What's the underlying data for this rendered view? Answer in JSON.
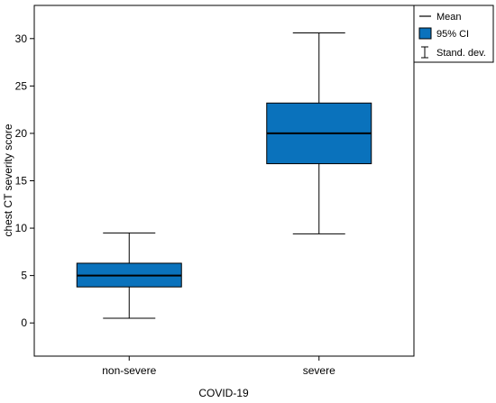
{
  "chart_data": {
    "type": "box",
    "xlabel": "COVID-19",
    "ylabel": "chest CT severity score",
    "ylim": [
      -3.5,
      33.5
    ],
    "yticks": [
      0,
      5,
      10,
      15,
      20,
      25,
      30
    ],
    "categories": [
      "non-severe",
      "severe"
    ],
    "boxes": [
      {
        "category": "non-severe",
        "mean": 5.0,
        "ci_low": 3.8,
        "ci_high": 6.3,
        "sd_low": 0.5,
        "sd_high": 9.5
      },
      {
        "category": "severe",
        "mean": 20.0,
        "ci_low": 16.8,
        "ci_high": 23.2,
        "sd_low": 9.4,
        "sd_high": 30.6
      }
    ],
    "legend": {
      "placement": "top-right",
      "items": [
        {
          "symbol": "line",
          "label": "Mean"
        },
        {
          "symbol": "box",
          "label": "95% CI"
        },
        {
          "symbol": "errorbar",
          "label": "Stand. dev."
        }
      ]
    },
    "colors": {
      "box_fill": "#0a72bc",
      "line": "#000000"
    },
    "grid": false
  }
}
